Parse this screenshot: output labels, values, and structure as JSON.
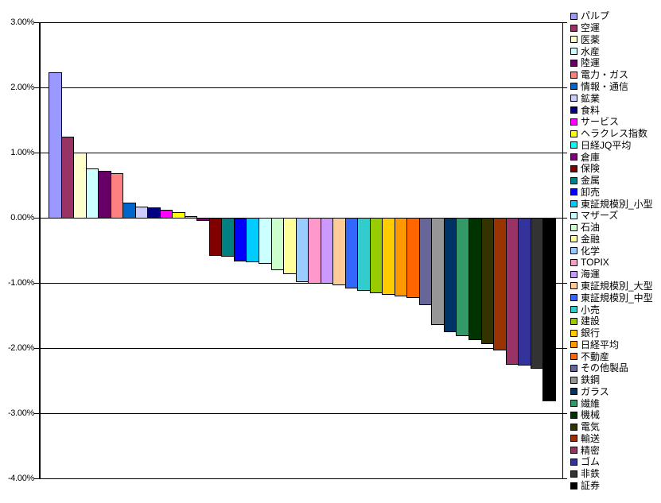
{
  "chart_data": {
    "type": "bar",
    "title": "",
    "xlabel": "",
    "ylabel": "",
    "ylim": [
      -4,
      3
    ],
    "grid": true,
    "legend_position": "right",
    "value_unit": "percent",
    "y_ticks": [
      "3.00%",
      "2.00%",
      "1.00%",
      "0.00%",
      "-1.00%",
      "-2.00%",
      "-3.00%",
      "-4.00%"
    ],
    "categories": [
      "パルプ",
      "空運",
      "医薬",
      "水産",
      "陸運",
      "電力・ガス",
      "情報・通信",
      "鉱業",
      "食料",
      "サービス",
      "ヘラクレス指数",
      "日経JQ平均",
      "倉庫",
      "保険",
      "金属",
      "卸売",
      "東証規模別_小型",
      "マザーズ",
      "石油",
      "金融",
      "化学",
      "TOPIX",
      "海運",
      "東証規模別_大型",
      "東証規模別_中型",
      "小売",
      "建設",
      "銀行",
      "日経平均",
      "不動産",
      "その他製品",
      "鉄鋼",
      "ガラス",
      "繊維",
      "機械",
      "電気",
      "輸送",
      "精密",
      "ゴム",
      "非鉄",
      "証券"
    ],
    "values": [
      2.23,
      1.24,
      1.0,
      0.76,
      0.72,
      0.68,
      0.23,
      0.17,
      0.16,
      0.12,
      0.09,
      0.02,
      -0.04,
      -0.57,
      -0.59,
      -0.66,
      -0.67,
      -0.7,
      -0.79,
      -0.85,
      -0.98,
      -1.0,
      -1.0,
      -1.02,
      -1.07,
      -1.11,
      -1.15,
      -1.17,
      -1.2,
      -1.22,
      -1.33,
      -1.63,
      -1.74,
      -1.81,
      -1.86,
      -1.93,
      -2.02,
      -2.24,
      -2.26,
      -2.3,
      -2.81
    ],
    "colors": [
      "#9999FF",
      "#993366",
      "#FFFFCC",
      "#CCFFFF",
      "#660066",
      "#FF8080",
      "#0066CC",
      "#CCCCFF",
      "#000080",
      "#FF00FF",
      "#FFFF00",
      "#00FFFF",
      "#800080",
      "#800000",
      "#008080",
      "#0000FF",
      "#00CCFF",
      "#CCFFFF",
      "#CCFFCC",
      "#FFFF99",
      "#99CCFF",
      "#FF99CC",
      "#CC99FF",
      "#FFCC99",
      "#3366FF",
      "#33CCCC",
      "#99CC00",
      "#FFCC00",
      "#FF9900",
      "#FF6600",
      "#666699",
      "#969696",
      "#003366",
      "#339966",
      "#003300",
      "#333300",
      "#993300",
      "#993366",
      "#333399",
      "#333333",
      "#000000"
    ]
  },
  "style_colors": {
    "plot_border": "#000000",
    "gridline": "#000000",
    "bar_border": "#000000",
    "background": "#FFFFFF",
    "text": "#000000"
  }
}
